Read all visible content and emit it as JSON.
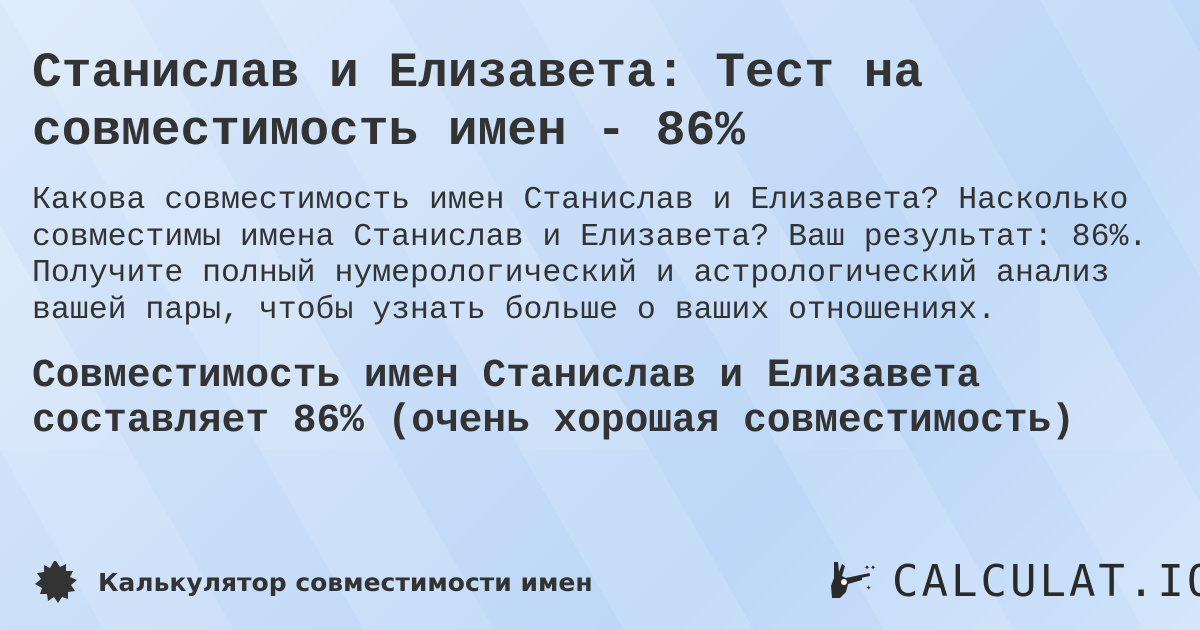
{
  "title": "Станислав и Елизавета: Тест на совместимость имен - 86%",
  "description": "Какова совместимость имен Станислав и Елизавета? Насколько совместимы имена Станислав и Елизавета? Ваш результат: 86%. Получите полный нумерологический и астрологический анализ вашей пары, чтобы узнать больше о ваших отношениях.",
  "result": "Совместимость имен Станислав и Елизавета составляет 86% (очень хорошая совместимость)",
  "footer": {
    "label": "Калькулятор совместимости имен",
    "icon": "badge-icon"
  },
  "logo": {
    "text": "CALCULAT.IO",
    "icon": "magic-hand-icon"
  }
}
